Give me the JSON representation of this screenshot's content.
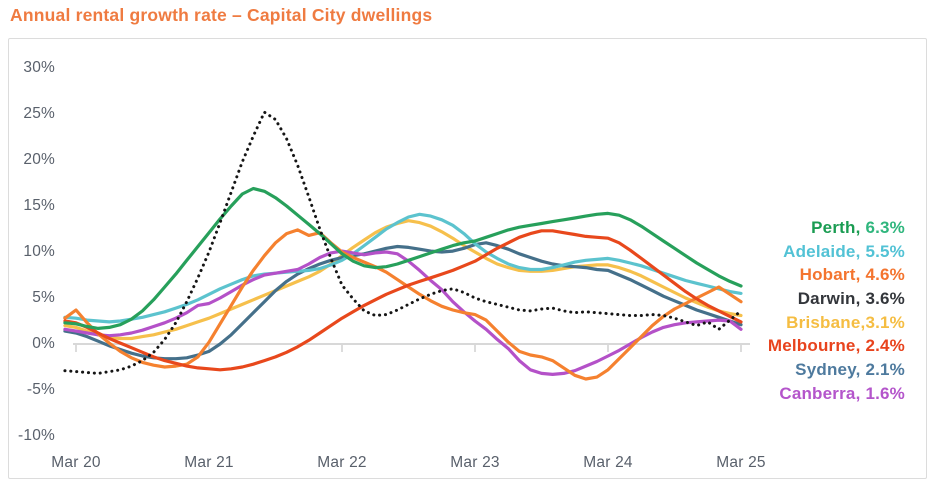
{
  "page": {
    "title": "Annual rental growth rate – Capital City dwellings",
    "title_color": "#EF7B41",
    "background": "#FFFFFF",
    "card_border_color": "#DCDCDC",
    "axis_line_color": "#D8D8D8",
    "axis_label_color": "#59606B"
  },
  "legend": {
    "entries": [
      {
        "city": "Perth",
        "name_text": "Perth, ",
        "value_text": "6.3%",
        "name_color": "#1A9C52",
        "value_color": "#2FB67D"
      },
      {
        "city": "Adelaide",
        "name_text": "Adelaide, ",
        "value_text": "5.5%",
        "name_color": "#52C2D5",
        "value_color": "#52C2D5"
      },
      {
        "city": "Hobart",
        "name_text": "Hobart, ",
        "value_text": "4.6%",
        "name_color": "#F4742E",
        "value_color": "#F4742E"
      },
      {
        "city": "Darwin",
        "name_text": "Darwin, ",
        "value_text": "3.6%",
        "name_color": "#33363B",
        "value_color": "#33363B"
      },
      {
        "city": "Brisbane",
        "name_text": "Brisbane,",
        "value_text": "3.1%",
        "name_color": "#F5BD42",
        "value_color": "#F5BD42"
      },
      {
        "city": "Melbourne",
        "name_text": "Melbourne, ",
        "value_text": "2.4%",
        "name_color": "#E8431D",
        "value_color": "#E8431D"
      },
      {
        "city": "Sydney",
        "name_text": "Sydney, ",
        "value_text": "2.1%",
        "name_color": "#4E7A9E",
        "value_color": "#4E7A9E"
      },
      {
        "city": "Canberra",
        "name_text": "Canberra, ",
        "value_text": "1.6%",
        "name_color": "#B455CB",
        "value_color": "#B455CB"
      }
    ]
  },
  "chart_data": {
    "type": "line",
    "title": "Annual rental growth rate – Capital City dwellings",
    "x_frequency": "monthly",
    "x_range": "Feb 2020 to Mar 2025",
    "x_tick_labels": [
      "Mar 20",
      "Mar 21",
      "Mar 22",
      "Mar 23",
      "Mar 24",
      "Mar 25"
    ],
    "x_tick_indices": [
      1,
      13,
      25,
      37,
      49,
      61
    ],
    "y_ticks": [
      {
        "label": "30%",
        "value": 30
      },
      {
        "label": "25%",
        "value": 25
      },
      {
        "label": "20%",
        "value": 20
      },
      {
        "label": "15%",
        "value": 15
      },
      {
        "label": "10%",
        "value": 10
      },
      {
        "label": "5%",
        "value": 5
      },
      {
        "label": "0%",
        "value": 0
      },
      {
        "label": "-5%",
        "value": -5
      },
      {
        "label": "-10%",
        "value": -10
      }
    ],
    "ylim": [
      -10,
      30
    ],
    "grid": "zero-axis-only",
    "legend_position": "right",
    "series": [
      {
        "name": "Perth",
        "color": "#27A05B",
        "line_style": "solid",
        "final_value": 6.3,
        "values": [
          2.3,
          2.2,
          1.9,
          1.7,
          1.8,
          2.1,
          2.7,
          3.6,
          4.8,
          6.2,
          7.6,
          9.1,
          10.6,
          12.1,
          13.6,
          15.0,
          16.3,
          16.9,
          16.6,
          15.9,
          15.0,
          14.0,
          13.0,
          12.0,
          10.9,
          9.8,
          9.0,
          8.5,
          8.3,
          8.4,
          8.7,
          9.1,
          9.5,
          9.9,
          10.3,
          10.7,
          11.0,
          11.2,
          11.6,
          12.0,
          12.4,
          12.7,
          12.9,
          13.1,
          13.3,
          13.5,
          13.7,
          13.9,
          14.1,
          14.2,
          14.0,
          13.5,
          12.8,
          12.0,
          11.2,
          10.4,
          9.6,
          8.8,
          8.1,
          7.4,
          6.8,
          6.3
        ]
      },
      {
        "name": "Adelaide",
        "color": "#5CC3CE",
        "line_style": "solid",
        "final_value": 5.5,
        "values": [
          2.9,
          2.8,
          2.6,
          2.5,
          2.4,
          2.5,
          2.7,
          2.9,
          3.2,
          3.5,
          3.9,
          4.3,
          4.8,
          5.4,
          6.0,
          6.5,
          7.0,
          7.4,
          7.6,
          7.7,
          7.8,
          7.9,
          8.0,
          8.2,
          8.6,
          9.1,
          9.8,
          10.7,
          11.6,
          12.5,
          13.2,
          13.8,
          14.1,
          13.9,
          13.5,
          12.9,
          12.0,
          10.9,
          10.0,
          9.3,
          8.7,
          8.3,
          8.1,
          8.1,
          8.3,
          8.6,
          8.9,
          9.1,
          9.2,
          9.3,
          9.1,
          8.8,
          8.5,
          8.1,
          7.7,
          7.3,
          6.9,
          6.6,
          6.3,
          6.0,
          5.7,
          5.5
        ]
      },
      {
        "name": "Hobart",
        "color": "#F5812F",
        "line_style": "solid",
        "final_value": 4.6,
        "values": [
          2.8,
          3.7,
          2.3,
          1.1,
          0.1,
          -0.8,
          -1.5,
          -2.0,
          -2.3,
          -2.5,
          -2.4,
          -2.2,
          -1.4,
          0.2,
          2.2,
          4.2,
          6.2,
          8.0,
          9.6,
          11.0,
          12.0,
          12.4,
          11.8,
          12.1,
          11.0,
          10.0,
          9.4,
          8.9,
          8.4,
          7.8,
          7.0,
          6.2,
          5.4,
          4.7,
          4.1,
          3.7,
          3.4,
          3.2,
          2.6,
          1.4,
          0.2,
          -0.8,
          -1.2,
          -1.4,
          -1.8,
          -2.6,
          -3.4,
          -3.8,
          -3.6,
          -2.8,
          -1.6,
          -0.4,
          0.8,
          2.0,
          3.0,
          3.8,
          4.4,
          5.0,
          5.6,
          6.2,
          5.4,
          4.6
        ]
      },
      {
        "name": "Darwin",
        "color": "#151515",
        "line_style": "dotted",
        "final_value": 3.6,
        "values": [
          -2.9,
          -3.0,
          -3.1,
          -3.2,
          -3.0,
          -2.8,
          -2.4,
          -1.8,
          -0.9,
          0.5,
          2.3,
          4.6,
          7.2,
          10.0,
          13.2,
          16.5,
          19.8,
          22.6,
          25.2,
          24.4,
          22.3,
          19.4,
          16.0,
          12.5,
          9.3,
          6.4,
          4.9,
          3.6,
          3.1,
          3.2,
          3.7,
          4.3,
          4.9,
          5.4,
          5.8,
          6.0,
          5.6,
          5.0,
          4.6,
          4.3,
          4.0,
          3.7,
          3.6,
          3.8,
          3.9,
          3.6,
          3.4,
          3.5,
          3.4,
          3.3,
          3.2,
          3.1,
          3.1,
          3.2,
          3.1,
          2.8,
          2.4,
          2.0,
          2.4,
          1.6,
          2.6,
          3.6
        ]
      },
      {
        "name": "Brisbane",
        "color": "#F6C04C",
        "line_style": "solid",
        "final_value": 3.1,
        "values": [
          2.0,
          1.8,
          1.4,
          1.0,
          0.7,
          0.6,
          0.6,
          0.8,
          1.0,
          1.3,
          1.6,
          2.0,
          2.4,
          2.8,
          3.3,
          3.8,
          4.3,
          4.8,
          5.3,
          5.8,
          6.3,
          6.8,
          7.3,
          7.9,
          8.7,
          9.6,
          10.5,
          11.3,
          12.1,
          12.7,
          13.1,
          13.4,
          13.2,
          12.8,
          12.2,
          11.5,
          10.7,
          10.0,
          9.3,
          8.7,
          8.3,
          8.0,
          7.9,
          7.9,
          8.0,
          8.2,
          8.4,
          8.5,
          8.6,
          8.6,
          8.3,
          7.9,
          7.4,
          6.8,
          6.2,
          5.6,
          5.0,
          4.5,
          4.0,
          3.6,
          3.3,
          3.1
        ]
      },
      {
        "name": "Melbourne",
        "color": "#E8481C",
        "line_style": "solid",
        "final_value": 2.4,
        "values": [
          2.5,
          2.3,
          1.8,
          1.2,
          0.6,
          0.1,
          -0.4,
          -0.9,
          -1.4,
          -1.8,
          -2.1,
          -2.4,
          -2.6,
          -2.7,
          -2.8,
          -2.7,
          -2.5,
          -2.2,
          -1.8,
          -1.4,
          -0.9,
          -0.3,
          0.4,
          1.2,
          2.0,
          2.8,
          3.5,
          4.2,
          4.8,
          5.4,
          5.9,
          6.4,
          6.8,
          7.2,
          7.6,
          8.0,
          8.5,
          9.0,
          9.7,
          10.4,
          11.0,
          11.6,
          12.0,
          12.3,
          12.3,
          12.1,
          11.9,
          11.7,
          11.6,
          11.5,
          11.0,
          10.2,
          9.3,
          8.4,
          7.5,
          6.6,
          5.7,
          4.9,
          4.2,
          3.6,
          3.0,
          2.4
        ]
      },
      {
        "name": "Sydney",
        "color": "#45708A",
        "line_style": "solid",
        "final_value": 2.1,
        "values": [
          1.4,
          1.2,
          0.8,
          0.3,
          -0.2,
          -0.6,
          -1.0,
          -1.3,
          -1.5,
          -1.6,
          -1.6,
          -1.5,
          -1.2,
          -0.8,
          0.0,
          1.0,
          2.2,
          3.4,
          4.6,
          5.8,
          6.8,
          7.6,
          8.2,
          8.7,
          9.1,
          9.4,
          9.6,
          9.8,
          10.1,
          10.4,
          10.6,
          10.5,
          10.3,
          10.1,
          10.0,
          10.1,
          10.4,
          10.8,
          11.0,
          10.7,
          10.3,
          9.8,
          9.4,
          9.0,
          8.7,
          8.5,
          8.4,
          8.3,
          8.1,
          8.0,
          7.5,
          7.0,
          6.4,
          5.8,
          5.2,
          4.7,
          4.2,
          3.7,
          3.3,
          2.9,
          2.5,
          2.1
        ]
      },
      {
        "name": "Canberra",
        "color": "#B451C8",
        "line_style": "solid",
        "final_value": 1.6,
        "values": [
          1.6,
          1.4,
          1.2,
          1.0,
          0.9,
          1.0,
          1.2,
          1.5,
          1.9,
          2.3,
          2.8,
          3.4,
          4.2,
          4.4,
          5.0,
          5.7,
          6.4,
          7.0,
          7.5,
          7.7,
          7.9,
          8.1,
          8.7,
          9.4,
          9.9,
          10.1,
          9.9,
          9.7,
          9.9,
          10.0,
          9.8,
          9.0,
          8.0,
          6.9,
          5.9,
          4.6,
          3.5,
          2.5,
          1.6,
          0.5,
          -0.5,
          -1.8,
          -2.8,
          -3.2,
          -3.3,
          -3.2,
          -2.9,
          -2.4,
          -1.9,
          -1.3,
          -0.7,
          0.0,
          0.7,
          1.3,
          1.8,
          2.1,
          2.3,
          2.4,
          2.5,
          2.6,
          2.5,
          1.6
        ]
      }
    ]
  }
}
